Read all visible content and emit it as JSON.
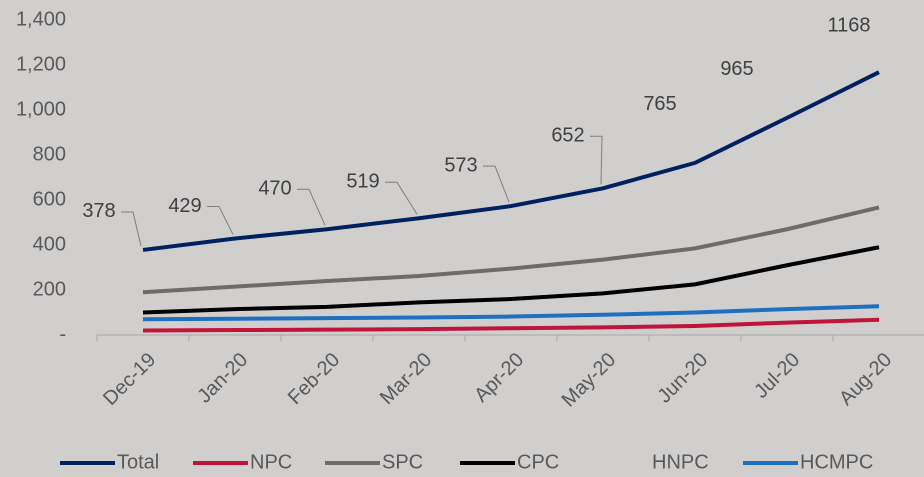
{
  "chart_data": {
    "type": "line",
    "categories": [
      "Dec-19",
      "Jan-20",
      "Feb-20",
      "Mar-20",
      "Apr-20",
      "May-20",
      "Jun-20",
      "Jul-20",
      "Aug-20"
    ],
    "series": [
      {
        "name": "Total",
        "color": "#002060",
        "values": [
          378,
          429,
          470,
          519,
          573,
          652,
          765,
          965,
          1168
        ],
        "data_labels": true
      },
      {
        "name": "NPC",
        "color": "#c0143c",
        "values": [
          20,
          22,
          24,
          26,
          30,
          34,
          40,
          55,
          68
        ]
      },
      {
        "name": "SPC",
        "color": "#706b69",
        "values": [
          190,
          215,
          240,
          262,
          295,
          335,
          385,
          470,
          567
        ]
      },
      {
        "name": "CPC",
        "color": "#000000",
        "values": [
          100,
          115,
          125,
          145,
          160,
          185,
          225,
          310,
          390
        ]
      },
      {
        "name": "HNPC",
        "color": "#d1cfce",
        "values": [
          null,
          null,
          null,
          null,
          null,
          null,
          null,
          null,
          null
        ]
      },
      {
        "name": "HCMPC",
        "color": "#1f6fbf",
        "values": [
          70,
          72,
          75,
          78,
          82,
          90,
          100,
          115,
          128
        ]
      }
    ],
    "ylim": [
      0,
      1400
    ],
    "yticks": [
      {
        "value": 0,
        "label": "-"
      },
      200,
      400,
      600,
      800,
      {
        "value": 1000,
        "label": "1,000"
      },
      {
        "value": 1200,
        "label": "1,200"
      },
      {
        "value": 1400,
        "label": "1,400"
      }
    ],
    "grid": false,
    "legend": "bottom"
  }
}
